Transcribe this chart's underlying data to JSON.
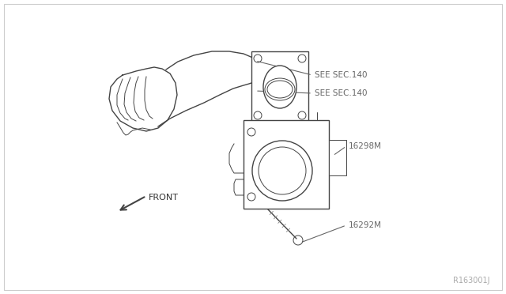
{
  "bg_color": "#ffffff",
  "line_color": "#444444",
  "label_color": "#666666",
  "text_color": "#333333",
  "watermark": "R163001J",
  "labels": {
    "see_sec_140_top": "SEE SEC.140",
    "see_sec_140_bot": "SEE SEC.140",
    "part_16298m": "16298M",
    "part_16292m": "16292M",
    "front": "FRONT"
  }
}
